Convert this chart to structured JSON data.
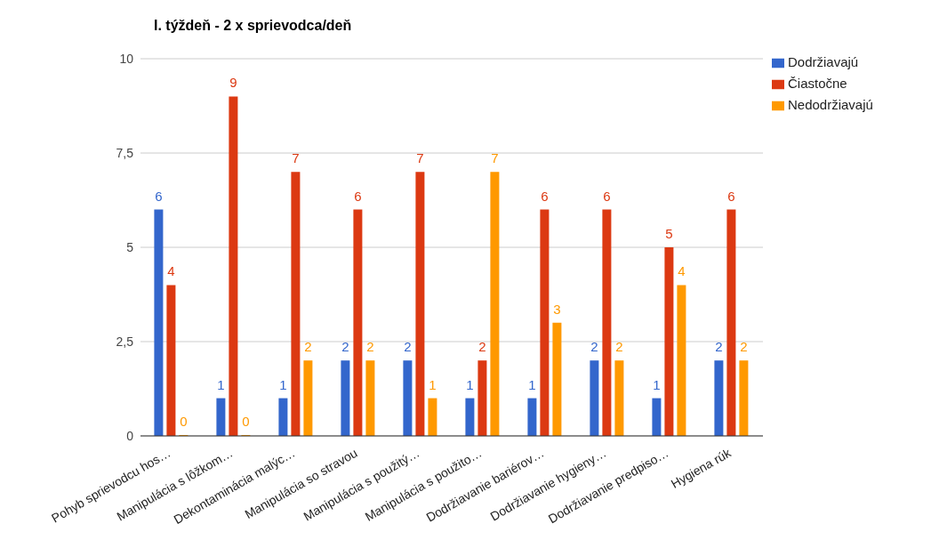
{
  "chart_data": {
    "type": "bar",
    "title": "I. týždeň - 2 x sprievodca/deň",
    "categories": [
      "Pohyb sprievodcu hos…",
      "Manipulácia s lôžkom…",
      "Dekontaminácia malýc…",
      "Manipulácia so stravou",
      "Manipulácia s použitý…",
      "Manipulácia s použito…",
      "Dodržiavanie bariérov…",
      "Dodržiavanie hygieny…",
      "Dodržiavanie predpiso…",
      "Hygiena rúk"
    ],
    "series": [
      {
        "name": "Dodržiavajú",
        "color": "#3366cc",
        "values": [
          6,
          1,
          1,
          2,
          2,
          1,
          1,
          2,
          1,
          2
        ]
      },
      {
        "name": "Čiastočne",
        "color": "#dc3912",
        "values": [
          4,
          9,
          7,
          6,
          7,
          2,
          6,
          6,
          5,
          6
        ]
      },
      {
        "name": "Nedodržiavajú",
        "color": "#ff9900",
        "values": [
          0,
          0,
          2,
          2,
          1,
          7,
          3,
          2,
          4,
          2
        ]
      }
    ],
    "ylim": [
      0,
      10
    ],
    "yticks": [
      0,
      {
        "value": 2.5,
        "label": "2,5"
      },
      5,
      {
        "value": 7.5,
        "label": "7,5"
      },
      10
    ],
    "grid": "y",
    "legend": "top right",
    "data_labels": true
  }
}
